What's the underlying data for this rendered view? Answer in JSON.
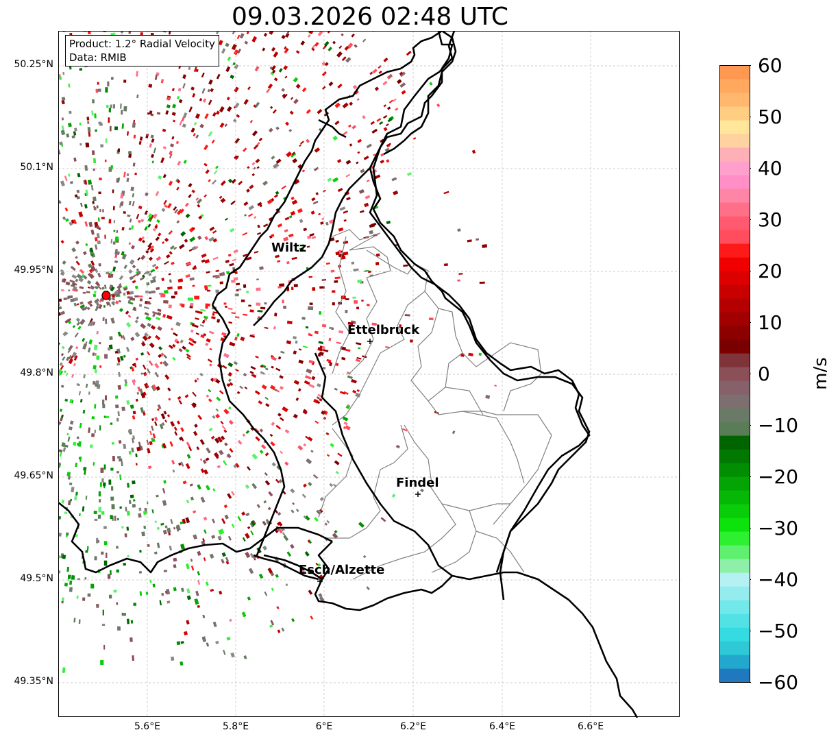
{
  "title": "09.03.2026 02:48 UTC",
  "info": {
    "product": "Product: 1.2° Radial Velocity",
    "source": "Data: RMIB"
  },
  "lat_labels": [
    "50.25°N",
    "50.1°N",
    "49.95°N",
    "49.8°N",
    "49.65°N",
    "49.5°N",
    "49.35°N"
  ],
  "lon_labels": [
    "5.6°E",
    "5.8°E",
    "6°E",
    "6.2°E",
    "6.4°E",
    "6.6°E"
  ],
  "cities": [
    {
      "name": "Wiltz"
    },
    {
      "name": "Ettelbruck"
    },
    {
      "name": "Findel"
    },
    {
      "name": "Esch/Alzette"
    }
  ],
  "colorbar": {
    "unit": "m/s",
    "ticks": [
      "60",
      "50",
      "40",
      "30",
      "20",
      "10",
      "0",
      "−10",
      "−20",
      "−30",
      "−40",
      "−50",
      "−60"
    ],
    "min": -60,
    "max": 60,
    "colors": [
      "#2079bf",
      "#21a8cc",
      "#2ec8d6",
      "#34dbe0",
      "#52e2e6",
      "#73e8ea",
      "#94ecee",
      "#b5f0f2",
      "#8ef0a8",
      "#5ef06e",
      "#2cf030",
      "#0ce20c",
      "#08cd08",
      "#06b806",
      "#04a404",
      "#028e02",
      "#017801",
      "#006400",
      "#5a7d58",
      "#6a7a66",
      "#7d6f6f",
      "#866169",
      "#8a4f57",
      "#7e3438",
      "#7a0000",
      "#8c0000",
      "#a00000",
      "#b40000",
      "#c80000",
      "#dc0000",
      "#f00000",
      "#ff1a1a",
      "#ff4d5e",
      "#ff5a70",
      "#ff6f88",
      "#ff85a6",
      "#ff8fc6",
      "#ffa0cc",
      "#ffb0b6",
      "#ffd2a0",
      "#ffe69a",
      "#ffce82",
      "#ffb86e",
      "#ffa85e",
      "#ff9850"
    ]
  },
  "map_layers": {
    "country_border": "#000000",
    "canton_border": "#808080",
    "grid_color": "#bbbbbb",
    "radar_site_color": "#ff0000"
  }
}
